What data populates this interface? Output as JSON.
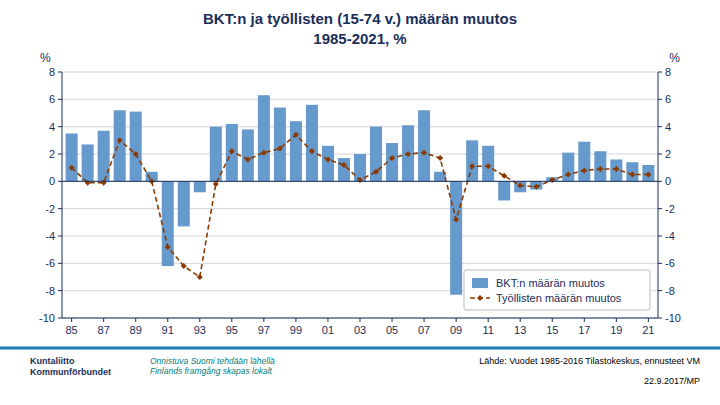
{
  "chart_data": {
    "type": "bar",
    "title": "BKT:n ja työllisten (15-74 v.) määrän muutos",
    "subtitle": "1985-2021, %",
    "ylabel": "%",
    "y2label": "%",
    "categories": [
      "85",
      null,
      "87",
      null,
      "89",
      null,
      "91",
      null,
      "93",
      null,
      "95",
      null,
      "97",
      null,
      "99",
      null,
      "01",
      null,
      "03",
      null,
      "05",
      null,
      "07",
      null,
      "09",
      null,
      "11",
      null,
      "13",
      null,
      "15",
      null,
      "17",
      null,
      "19",
      null,
      "21"
    ],
    "series": [
      {
        "name": "BKT:n määrän muutos",
        "type": "bar",
        "color": "#6699CC",
        "values": [
          3.5,
          2.7,
          3.7,
          5.2,
          5.1,
          0.7,
          -6.2,
          -3.3,
          -0.8,
          4.0,
          4.2,
          3.8,
          6.3,
          5.4,
          4.4,
          5.6,
          2.6,
          1.7,
          2.0,
          4.0,
          2.8,
          4.1,
          5.2,
          0.7,
          -8.3,
          3.0,
          2.6,
          -1.4,
          -0.8,
          -0.6,
          0.3,
          2.1,
          2.9,
          2.2,
          1.6,
          1.4,
          1.2
        ]
      },
      {
        "name": "Työllisten määrän muutos",
        "type": "line",
        "color": "#8B3A00",
        "line_style": "dashed",
        "marker": "diamond",
        "values": [
          1.0,
          -0.1,
          -0.1,
          3.0,
          2.0,
          0.0,
          -4.8,
          -6.2,
          -7.0,
          -0.2,
          2.2,
          1.6,
          2.1,
          2.4,
          3.4,
          2.2,
          1.6,
          1.2,
          0.1,
          0.7,
          1.7,
          2.0,
          2.1,
          1.7,
          -2.8,
          1.1,
          1.1,
          0.4,
          -0.3,
          -0.4,
          0.1,
          0.5,
          0.8,
          0.9,
          0.9,
          0.5,
          0.5
        ]
      }
    ],
    "ylim": [
      -10,
      8
    ],
    "yticks": [
      -10,
      -8,
      -6,
      -4,
      -2,
      0,
      2,
      4,
      6,
      8
    ],
    "y2lim": [
      -10,
      8
    ],
    "y2ticks": [
      -10,
      -8,
      -6,
      -4,
      -2,
      0,
      2,
      4,
      6,
      8
    ],
    "grid": true,
    "legend": "lower right",
    "annotations": [
      "Kuntaliitto\nKommunförbundet",
      "Onnistuva Suomi tehdään lähellä\nFinlands framgång skapas lokalt",
      "Lähde: Vuodet 1985-2016 Tilastokeskus, ennusteet VM",
      "22.9.2017/MP"
    ]
  }
}
